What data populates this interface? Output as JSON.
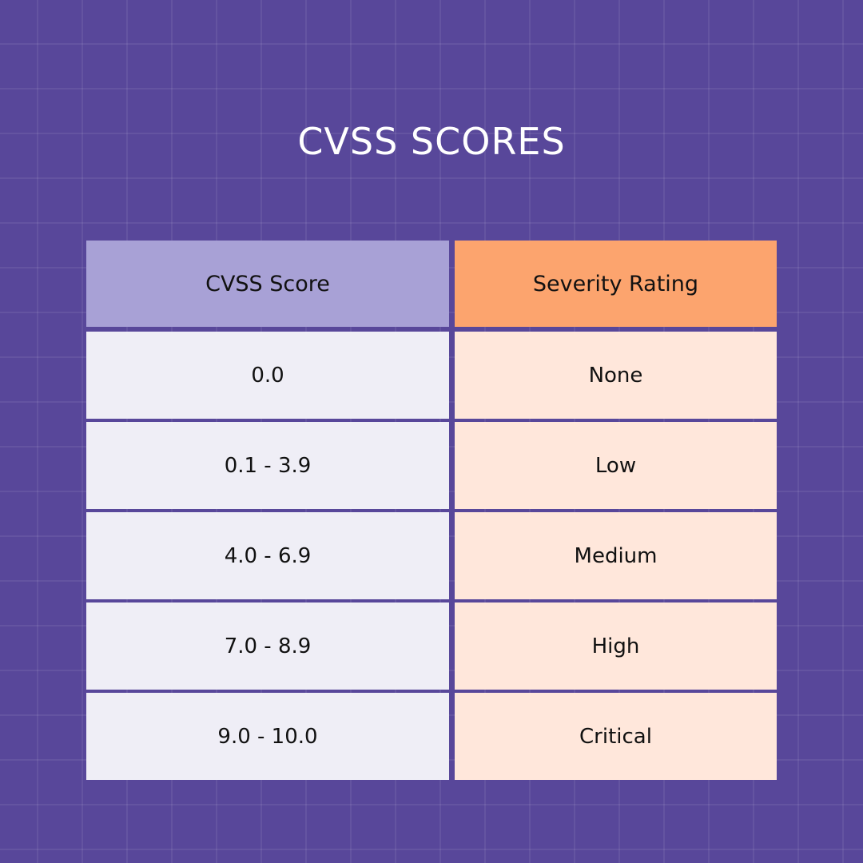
{
  "title": "CVSS SCORES",
  "colors": {
    "background": "#58479a",
    "score_header_bg": "#a8a1d6",
    "rating_header_bg": "#fca46e",
    "score_cell_bg": "#efeef6",
    "rating_cell_bg": "#ffe7db"
  },
  "table": {
    "headers": [
      "CVSS Score",
      "Severity Rating"
    ],
    "rows": [
      {
        "score": "0.0",
        "rating": "None"
      },
      {
        "score": "0.1 - 3.9",
        "rating": "Low"
      },
      {
        "score": "4.0 - 6.9",
        "rating": "Medium"
      },
      {
        "score": "7.0 - 8.9",
        "rating": "High"
      },
      {
        "score": "9.0 - 10.0",
        "rating": "Critical"
      }
    ]
  }
}
